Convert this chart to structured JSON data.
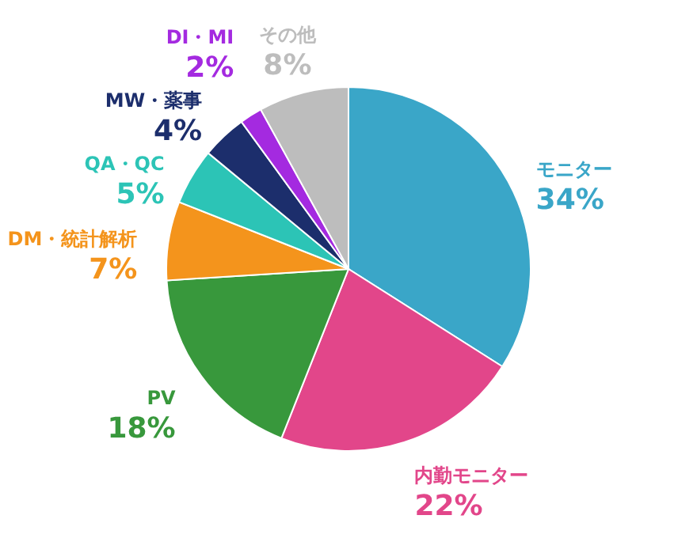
{
  "chart_data": {
    "type": "pie",
    "categories": [
      "モニター",
      "内勤モニター",
      "PV",
      "DM・統計解析",
      "QA・QC",
      "MW・薬事",
      "DI・MI",
      "その他"
    ],
    "values": [
      34,
      22,
      18,
      7,
      5,
      4,
      2,
      8
    ],
    "value_labels": [
      "34%",
      "22%",
      "18%",
      "7%",
      "5%",
      "4%",
      "2%",
      "8%"
    ],
    "colors": [
      "#3aa6c8",
      "#e2468a",
      "#38983c",
      "#f4941c",
      "#2cc4b6",
      "#1c2e6c",
      "#a42ae0",
      "#bdbdbd"
    ]
  }
}
